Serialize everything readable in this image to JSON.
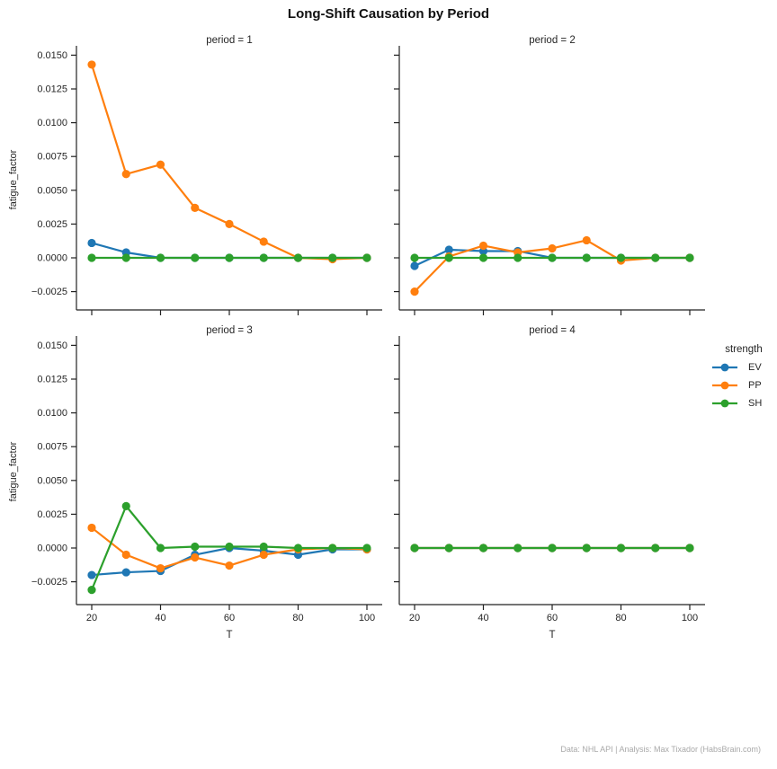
{
  "title": "Long-Shift Causation by Period",
  "footer": "Data: NHL API | Analysis: Max Tixador (HabsBrain.com)",
  "colors": {
    "EV": "#1f77b4",
    "PP": "#ff7f0e",
    "SH": "#2ca02c",
    "text": "#262626",
    "spine": "#222222",
    "muted_text": "#a9a9a9"
  },
  "legend": {
    "title": "strength",
    "entries": [
      {
        "label": "EV",
        "color": "#1f77b4"
      },
      {
        "label": "PP",
        "color": "#ff7f0e"
      },
      {
        "label": "SH",
        "color": "#2ca02c"
      }
    ]
  },
  "axes": {
    "xlabel": "T",
    "ylabel": "fatigue_factor",
    "xticks": [
      20,
      40,
      60,
      80,
      100
    ],
    "yticks": [
      0.015,
      0.0125,
      0.01,
      0.0075,
      0.005,
      0.0025,
      0.0,
      -0.0025
    ],
    "ytick_labels": [
      "0.0150",
      "0.0125",
      "0.0100",
      "0.0075",
      "0.0050",
      "0.0025",
      "0.0000",
      "−0.0025"
    ],
    "xlim": [
      15.5,
      104.5
    ],
    "ylim": [
      -0.0039,
      0.0154
    ],
    "grid": false,
    "legend_position": "right"
  },
  "chart_data": [
    {
      "type": "line",
      "title": "period = 1",
      "x": [
        20,
        30,
        40,
        50,
        60,
        70,
        80,
        90,
        100
      ],
      "series": [
        {
          "name": "EV",
          "color": "#1f77b4",
          "values": [
            0.0011,
            0.0004,
            0.0,
            0.0,
            0.0,
            0.0,
            0.0,
            0.0,
            0.0
          ]
        },
        {
          "name": "PP",
          "color": "#ff7f0e",
          "values": [
            0.0143,
            0.0062,
            0.0069,
            0.0037,
            0.0025,
            0.0012,
            0.0,
            -0.0001,
            0.0
          ]
        },
        {
          "name": "SH",
          "color": "#2ca02c",
          "values": [
            0.0,
            0.0,
            0.0,
            0.0,
            0.0,
            0.0,
            0.0,
            0.0,
            0.0
          ]
        }
      ]
    },
    {
      "type": "line",
      "title": "period = 2",
      "x": [
        20,
        30,
        40,
        50,
        60,
        70,
        80,
        90,
        100
      ],
      "series": [
        {
          "name": "EV",
          "color": "#1f77b4",
          "values": [
            -0.0006,
            0.0006,
            0.0005,
            0.0005,
            0.0,
            0.0,
            0.0,
            0.0,
            0.0
          ]
        },
        {
          "name": "PP",
          "color": "#ff7f0e",
          "values": [
            -0.0025,
            0.0001,
            0.0009,
            0.0004,
            0.0007,
            0.0013,
            -0.0002,
            0.0,
            0.0
          ]
        },
        {
          "name": "SH",
          "color": "#2ca02c",
          "values": [
            0.0,
            0.0,
            0.0,
            0.0,
            0.0,
            0.0,
            0.0,
            0.0,
            0.0
          ]
        }
      ]
    },
    {
      "type": "line",
      "title": "period = 3",
      "x": [
        20,
        30,
        40,
        50,
        60,
        70,
        80,
        90,
        100
      ],
      "series": [
        {
          "name": "EV",
          "color": "#1f77b4",
          "values": [
            -0.002,
            -0.0018,
            -0.0017,
            -0.0005,
            0.0,
            -0.0002,
            -0.0005,
            -0.0001,
            -0.0001
          ]
        },
        {
          "name": "PP",
          "color": "#ff7f0e",
          "values": [
            0.0015,
            -0.0005,
            -0.0015,
            -0.0007,
            -0.0013,
            -0.0005,
            -0.0001,
            0.0,
            -0.0001
          ]
        },
        {
          "name": "SH",
          "color": "#2ca02c",
          "values": [
            -0.0031,
            0.0031,
            0.0,
            0.0001,
            0.0001,
            0.0001,
            0.0,
            0.0,
            0.0
          ]
        }
      ]
    },
    {
      "type": "line",
      "title": "period = 4",
      "x": [
        20,
        30,
        40,
        50,
        60,
        70,
        80,
        90,
        100
      ],
      "series": [
        {
          "name": "EV",
          "color": "#1f77b4",
          "values": [
            0.0,
            0.0,
            0.0,
            0.0,
            0.0,
            0.0,
            0.0,
            0.0,
            0.0
          ]
        },
        {
          "name": "PP",
          "color": "#ff7f0e",
          "values": [
            0.0,
            0.0,
            0.0,
            0.0,
            0.0,
            0.0,
            0.0,
            0.0,
            0.0
          ]
        },
        {
          "name": "SH",
          "color": "#2ca02c",
          "values": [
            0.0,
            0.0,
            0.0,
            0.0,
            0.0,
            0.0,
            0.0,
            0.0,
            0.0
          ]
        }
      ]
    }
  ]
}
